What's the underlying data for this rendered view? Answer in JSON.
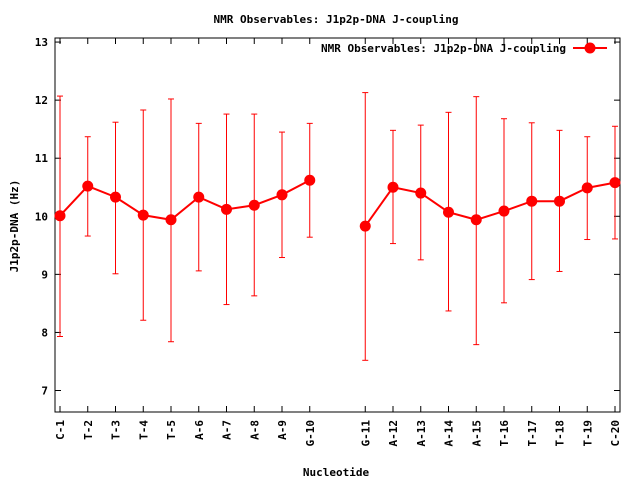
{
  "chart_data": {
    "type": "line",
    "title": "NMR Observables: J1p2p-DNA J-coupling",
    "xlabel": "Nucleotide",
    "ylabel": "J1p2p-DNA (Hz)",
    "ylim": [
      6.63,
      13.07
    ],
    "yticks": [
      7,
      8,
      9,
      10,
      11,
      12,
      13
    ],
    "categories": [
      "C-1",
      "T-2",
      "T-3",
      "T-4",
      "T-5",
      "A-6",
      "A-7",
      "A-8",
      "A-9",
      "G-10",
      "G-11",
      "A-12",
      "A-13",
      "A-14",
      "A-15",
      "T-16",
      "T-17",
      "T-18",
      "T-19",
      "C-20"
    ],
    "x_positions": [
      1,
      2,
      3,
      4,
      5,
      6,
      7,
      8,
      9,
      10,
      12,
      13,
      14,
      15,
      16,
      17,
      18,
      19,
      20,
      21
    ],
    "xlim": [
      1,
      21
    ],
    "legend_position": "top-right",
    "grid": false,
    "series": [
      {
        "name": "NMR Observables: J1p2p-DNA J-coupling",
        "color": "#ff0000",
        "segments": [
          [
            0,
            9
          ],
          [
            10,
            19
          ]
        ],
        "values": [
          10.01,
          10.52,
          10.33,
          10.02,
          9.94,
          10.33,
          10.12,
          10.19,
          10.37,
          10.62,
          9.83,
          10.5,
          10.4,
          10.07,
          9.94,
          10.09,
          10.26,
          10.26,
          10.49,
          10.58
        ],
        "err_low": [
          7.93,
          9.66,
          9.01,
          8.21,
          7.84,
          9.06,
          8.48,
          8.63,
          9.29,
          9.64,
          7.52,
          9.53,
          9.25,
          8.37,
          7.79,
          8.51,
          8.91,
          9.05,
          9.6,
          9.61
        ],
        "err_high": [
          12.07,
          11.37,
          11.62,
          11.83,
          12.02,
          11.6,
          11.76,
          11.76,
          11.45,
          11.6,
          12.13,
          11.48,
          11.57,
          11.79,
          12.06,
          11.68,
          11.61,
          11.48,
          11.37,
          11.55
        ]
      }
    ]
  }
}
